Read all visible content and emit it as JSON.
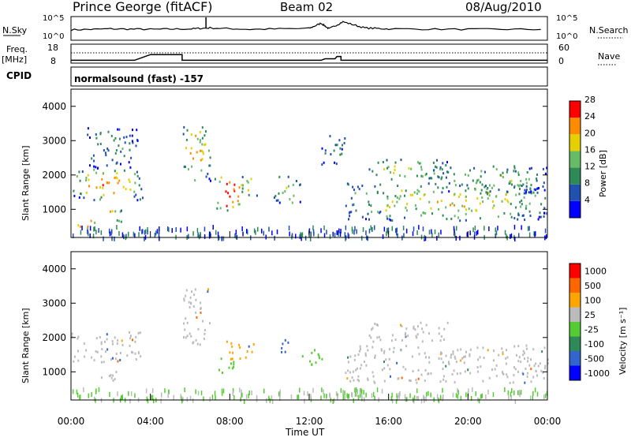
{
  "header": {
    "title": "Prince George (fitACF)",
    "beam": "Beam 02",
    "date": "08/Aug/2010"
  },
  "top_panels": {
    "nsky_label": "N.Sky",
    "nsky_ticks": [
      "10^5",
      "10^0"
    ],
    "nsearch_label": "N.Search",
    "nsearch_ticks": [
      "10^5",
      "10^0"
    ],
    "freq_label": "Freq.",
    "freq_unit": "[MHz]",
    "freq_ticks": [
      "18",
      "8"
    ],
    "nave_label": "Nave",
    "nave_ticks": [
      "60",
      "0"
    ],
    "cpid_label": "CPID",
    "cpid_text": "normalsound (fast) -157"
  },
  "chart_data": [
    {
      "type": "line",
      "name": "nsky-nsearch",
      "xlim": [
        0,
        24
      ],
      "noise_level_nsky": [
        [
          0,
          2.2
        ],
        [
          2,
          2.4
        ],
        [
          4,
          2.3
        ],
        [
          6,
          2.4
        ],
        [
          7,
          2.6
        ],
        [
          9,
          2.3
        ],
        [
          12,
          2.5
        ],
        [
          12.6,
          3.6
        ],
        [
          13,
          2.4
        ],
        [
          13.7,
          3.9
        ],
        [
          14.8,
          2.6
        ],
        [
          16,
          2.4
        ],
        [
          20,
          2.3
        ],
        [
          24,
          2.3
        ]
      ]
    },
    {
      "type": "line",
      "name": "freq-nave",
      "xlim": [
        0,
        24
      ],
      "freq_mhz": [
        [
          0,
          9.5
        ],
        [
          3.2,
          9.5
        ],
        [
          4.0,
          12.5
        ],
        [
          5.6,
          12.5
        ],
        [
          5.6,
          9.5
        ],
        [
          12.6,
          9.5
        ],
        [
          12.8,
          10.3
        ],
        [
          13.3,
          10.3
        ],
        [
          13.4,
          11.5
        ],
        [
          13.6,
          11.5
        ],
        [
          13.6,
          9.5
        ],
        [
          24,
          9.5
        ]
      ],
      "nave_dotted": 12
    },
    {
      "type": "heatmap",
      "name": "power",
      "xlabel": "",
      "ylabel": "Slant Range [km]",
      "xlim": [
        0,
        24
      ],
      "ylim": [
        180,
        4500
      ],
      "yticks": [
        1000,
        2000,
        3000,
        4000
      ],
      "colorbar": {
        "label": "Power [dB]",
        "ticks": [
          4,
          8,
          12,
          16,
          20,
          24,
          28
        ],
        "colors": [
          "#0000ff",
          "#2050b0",
          "#2e8b57",
          "#66bb66",
          "#e6d000",
          "#ff8c00",
          "#ff0000"
        ]
      },
      "blobs": [
        {
          "t0": 0.0,
          "t1": 3.6,
          "r0": 1300,
          "r1": 2200,
          "level": 0.55
        },
        {
          "t0": 0.2,
          "t1": 1.2,
          "r0": 450,
          "r1": 800,
          "level": 0.7
        },
        {
          "t0": 1.5,
          "t1": 2.6,
          "r0": 650,
          "r1": 1050,
          "level": 0.6
        },
        {
          "t0": 0.8,
          "t1": 3.4,
          "r0": 2200,
          "r1": 3400,
          "level": 0.25
        },
        {
          "t0": 5.6,
          "t1": 7.0,
          "r0": 1800,
          "r1": 3450,
          "level": 0.55
        },
        {
          "t0": 7.2,
          "t1": 8.6,
          "r0": 1000,
          "r1": 2000,
          "level": 0.8
        },
        {
          "t0": 8.6,
          "t1": 9.4,
          "r0": 1400,
          "r1": 2000,
          "level": 0.5
        },
        {
          "t0": 10.2,
          "t1": 11.6,
          "r0": 1200,
          "r1": 2000,
          "level": 0.45
        },
        {
          "t0": 12.6,
          "t1": 13.8,
          "r0": 2300,
          "r1": 3200,
          "level": 0.25
        },
        {
          "t0": 13.8,
          "t1": 24.0,
          "r0": 700,
          "r1": 1800,
          "level": 0.45
        },
        {
          "t0": 15.0,
          "t1": 19.0,
          "r0": 1900,
          "r1": 2500,
          "level": 0.4
        },
        {
          "t0": 18.0,
          "t1": 24.0,
          "r0": 1500,
          "r1": 2300,
          "level": 0.35
        }
      ]
    },
    {
      "type": "heatmap",
      "name": "velocity",
      "xlabel": "Time UT",
      "ylabel": "Slant Range [km]",
      "xlim": [
        0,
        24
      ],
      "ylim": [
        180,
        4500
      ],
      "yticks": [
        1000,
        2000,
        3000,
        4000
      ],
      "xticks": [
        "00:00",
        "04:00",
        "08:00",
        "12:00",
        "16:00",
        "20:00",
        "00:00"
      ],
      "colorbar": {
        "label": "Velocity [m s⁻¹]",
        "ticks": [
          "1000",
          "500",
          "100",
          "25",
          "-25",
          "-100",
          "-500",
          "-1000"
        ],
        "colors": [
          "#0000ff",
          "#3366cc",
          "#2e8b57",
          "#55cc33",
          "#bbbbbb",
          "#ffa500",
          "#ff6600",
          "#ff0000"
        ]
      },
      "blobs": [
        {
          "t0": 0.0,
          "t1": 3.6,
          "r0": 1300,
          "r1": 2200,
          "v": "gray"
        },
        {
          "t0": 1.5,
          "t1": 2.6,
          "r0": 650,
          "r1": 1050,
          "v": "gray"
        },
        {
          "t0": 5.6,
          "t1": 7.0,
          "r0": 1800,
          "r1": 3450,
          "v": "gray"
        },
        {
          "t0": 7.2,
          "t1": 8.2,
          "r0": 1000,
          "r1": 1500,
          "v": "green"
        },
        {
          "t0": 7.8,
          "t1": 9.2,
          "r0": 1400,
          "r1": 2000,
          "v": "orange"
        },
        {
          "t0": 10.3,
          "t1": 11.0,
          "r0": 1500,
          "r1": 2000,
          "v": "blue"
        },
        {
          "t0": 11.6,
          "t1": 12.8,
          "r0": 1200,
          "r1": 1700,
          "v": "green"
        },
        {
          "t0": 13.8,
          "t1": 24.0,
          "r0": 700,
          "r1": 1800,
          "v": "gray"
        },
        {
          "t0": 15.0,
          "t1": 19.0,
          "r0": 1900,
          "r1": 2500,
          "v": "gray"
        }
      ]
    }
  ]
}
